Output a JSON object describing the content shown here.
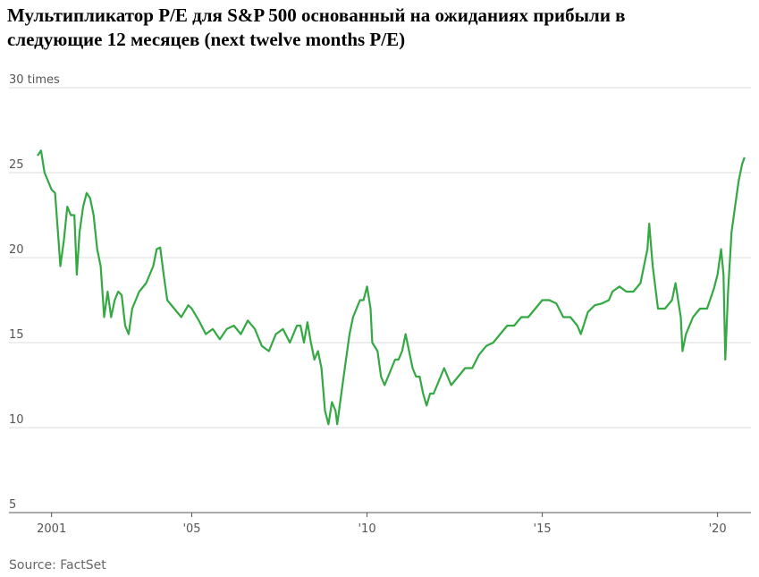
{
  "chart_data": {
    "type": "line",
    "title": "Мультипликатор P/E для S&P 500 основанный на ожиданиях прибыли в следующие 12 месяцев (next twelve months P/E)",
    "source": "Source: FactSet",
    "x": [
      2000.6,
      2000.7,
      2000.8,
      2000.9,
      2001.0,
      2001.1,
      2001.2,
      2001.25,
      2001.35,
      2001.45,
      2001.55,
      2001.65,
      2001.72,
      2001.8,
      2001.9,
      2002.0,
      2002.1,
      2002.2,
      2002.3,
      2002.4,
      2002.5,
      2002.6,
      2002.7,
      2002.8,
      2002.9,
      2003.0,
      2003.1,
      2003.2,
      2003.3,
      2003.5,
      2003.7,
      2003.9,
      2004.0,
      2004.1,
      2004.2,
      2004.3,
      2004.5,
      2004.7,
      2004.9,
      2005.0,
      2005.2,
      2005.4,
      2005.6,
      2005.8,
      2006.0,
      2006.2,
      2006.4,
      2006.6,
      2006.8,
      2007.0,
      2007.2,
      2007.4,
      2007.6,
      2007.8,
      2008.0,
      2008.1,
      2008.2,
      2008.3,
      2008.4,
      2008.5,
      2008.6,
      2008.7,
      2008.8,
      2008.9,
      2009.0,
      2009.1,
      2009.15,
      2009.3,
      2009.4,
      2009.5,
      2009.6,
      2009.7,
      2009.8,
      2009.9,
      2010.0,
      2010.1,
      2010.15,
      2010.3,
      2010.4,
      2010.5,
      2010.6,
      2010.7,
      2010.8,
      2010.9,
      2011.0,
      2011.1,
      2011.2,
      2011.3,
      2011.4,
      2011.5,
      2011.6,
      2011.7,
      2011.8,
      2011.9,
      2012.0,
      2012.2,
      2012.4,
      2012.6,
      2012.8,
      2013.0,
      2013.2,
      2013.4,
      2013.6,
      2013.8,
      2014.0,
      2014.2,
      2014.4,
      2014.6,
      2014.8,
      2015.0,
      2015.2,
      2015.4,
      2015.6,
      2015.8,
      2016.0,
      2016.1,
      2016.3,
      2016.5,
      2016.7,
      2016.9,
      2017.0,
      2017.2,
      2017.4,
      2017.6,
      2017.8,
      2018.0,
      2018.05,
      2018.15,
      2018.3,
      2018.5,
      2018.7,
      2018.8,
      2018.95,
      2019.0,
      2019.1,
      2019.3,
      2019.5,
      2019.7,
      2019.9,
      2020.0,
      2020.1,
      2020.17,
      2020.22,
      2020.3,
      2020.4,
      2020.5,
      2020.6,
      2020.7,
      2020.77
    ],
    "series": [
      {
        "name": "P/E",
        "color": "#33a843",
        "values": [
          26,
          26.3,
          25,
          24.5,
          24,
          23.8,
          21,
          19.5,
          21,
          23,
          22.5,
          22.5,
          19,
          21.5,
          23,
          23.8,
          23.5,
          22.5,
          20.5,
          19.5,
          16.5,
          18,
          16.5,
          17.5,
          18,
          17.8,
          16,
          15.5,
          17,
          18,
          18.5,
          19.5,
          20.5,
          20.6,
          19,
          17.5,
          17,
          16.5,
          17.2,
          17,
          16.3,
          15.5,
          15.8,
          15.2,
          15.8,
          16,
          15.5,
          16.3,
          15.8,
          14.8,
          14.5,
          15.5,
          15.8,
          15,
          16,
          16,
          15,
          16.2,
          15,
          14,
          14.5,
          13.5,
          11,
          10.2,
          11.5,
          11,
          10.2,
          12.5,
          14,
          15.5,
          16.5,
          17,
          17.5,
          17.5,
          18.3,
          17,
          15,
          14.5,
          13,
          12.5,
          13,
          13.5,
          14,
          14,
          14.5,
          15.5,
          14.5,
          13.5,
          13,
          13,
          12,
          11.3,
          12,
          12,
          12.5,
          13.5,
          12.5,
          13,
          13.5,
          13.5,
          14.3,
          14.8,
          15,
          15.5,
          16,
          16,
          16.5,
          16.5,
          17,
          17.5,
          17.5,
          17.3,
          16.5,
          16.5,
          16,
          15.5,
          16.8,
          17.2,
          17.3,
          17.5,
          18,
          18.3,
          18,
          18,
          18.5,
          20.5,
          22,
          19.5,
          17,
          17,
          17.5,
          18.5,
          16.5,
          14.5,
          15.5,
          16.5,
          17,
          17,
          18.2,
          19,
          20.5,
          19,
          14,
          18,
          21.5,
          23,
          24.5,
          25.5,
          25.9
        ]
      }
    ],
    "xlim": [
      2000.6,
      2020.8
    ],
    "xticks": [
      {
        "value": 2001,
        "label": "2001"
      },
      {
        "value": 2005,
        "label": "'05"
      },
      {
        "value": 2010,
        "label": "'10"
      },
      {
        "value": 2015,
        "label": "'15"
      },
      {
        "value": 2020,
        "label": "'20"
      }
    ],
    "ylim": [
      5,
      30
    ],
    "yticks": [
      5,
      10,
      15,
      20,
      {
        "value": 30,
        "label": "30 times"
      },
      25
    ],
    "grid": true
  }
}
